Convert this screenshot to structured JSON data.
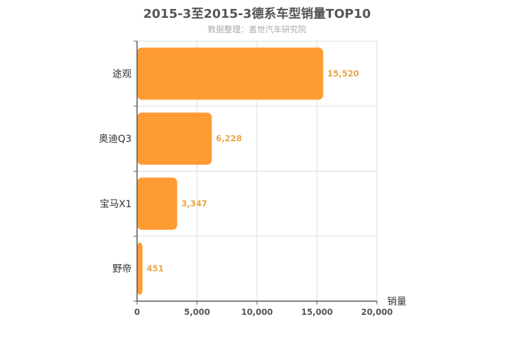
{
  "chart_data": {
    "type": "bar",
    "orientation": "horizontal",
    "title": "2015-3至2015-3德系车型销量TOP10",
    "subtitle": "数据整理：盖世汽车研究院",
    "categories": [
      "途观",
      "奥迪Q3",
      "宝马X1",
      "野帝"
    ],
    "values": [
      15520,
      6228,
      3347,
      451
    ],
    "value_labels": [
      "15,520",
      "6,228",
      "3,347",
      "451"
    ],
    "xlabel": "销量",
    "xlim": [
      0,
      20000
    ],
    "xticks": [
      0,
      5000,
      10000,
      15000,
      20000
    ],
    "xtick_labels": [
      "0",
      "5,000",
      "10,000",
      "15,000",
      "20,000"
    ],
    "grid": true,
    "colors": {
      "bar": "#ff9b33",
      "value_label": "#e8a64c",
      "axis": "#555555",
      "grid": "#dddddd"
    }
  }
}
